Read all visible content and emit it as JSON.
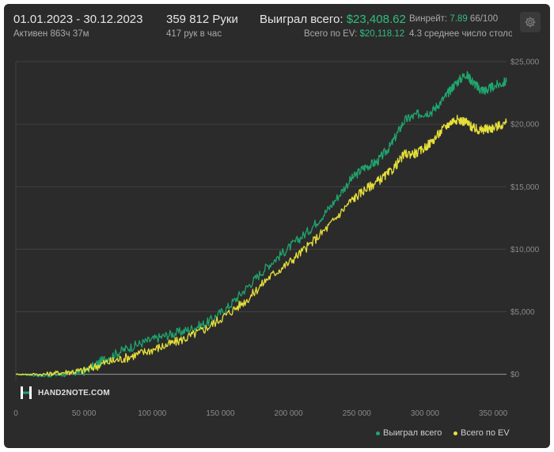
{
  "header": {
    "date_range": "01.01.2023 - 30.12.2023",
    "active_time": "Активен 863ч 37м",
    "hands": "359 812 Руки",
    "hands_per_hour": "417 рук в час",
    "won_label": "Выиграл всего:",
    "won_value": "$23,408.62",
    "ev_label": "Всего по EV:",
    "ev_value": "$20,118.12",
    "winrate_label": "Винрейт:",
    "winrate_value": "7.89",
    "winrate_extra": "66/100",
    "avg_tables": "4.3 среднее число столо"
  },
  "logo": {
    "text": "HAND2NOTE.COM"
  },
  "legend": [
    {
      "label": "Выиграл всего",
      "color": "#1fa56e"
    },
    {
      "label": "Всего по EV",
      "color": "#e6e03a"
    }
  ],
  "icons": {
    "settings": "gear-icon"
  },
  "colors": {
    "panel_bg": "#2b2b2b",
    "grid": "#414141",
    "accent_green": "#2fbf7f",
    "ev_yellow": "#e6e03a"
  },
  "chart_data": {
    "type": "line",
    "x_ticks": [
      "0",
      "50 000",
      "100 000",
      "150 000",
      "200 000",
      "250 000",
      "300 000",
      "350 000"
    ],
    "x_tick_values": [
      0,
      50000,
      100000,
      150000,
      200000,
      250000,
      300000,
      350000
    ],
    "y_ticks": [
      "$0",
      "$5,000",
      "$10,000",
      "$15,000",
      "$20,000",
      "$25,000"
    ],
    "y_tick_values": [
      0,
      5000,
      10000,
      15000,
      20000,
      25000
    ],
    "xlim": [
      0,
      359812
    ],
    "ylim": [
      -400,
      25000
    ],
    "grid": "horizontal",
    "legend_position": "bottom-right",
    "series": [
      {
        "name": "Выиграл всего",
        "color": "#1fa56e",
        "x": [
          0,
          20000,
          35000,
          50000,
          65000,
          80000,
          95000,
          110000,
          125000,
          140000,
          155000,
          170000,
          185000,
          200000,
          215000,
          230000,
          245000,
          255000,
          265000,
          275000,
          285000,
          295000,
          305000,
          315000,
          322000,
          330000,
          335000,
          340000,
          345000,
          350000,
          359812
        ],
        "y": [
          0,
          -100,
          0,
          200,
          1200,
          2000,
          2600,
          3100,
          3500,
          4100,
          5300,
          7000,
          8700,
          10100,
          11500,
          13300,
          15500,
          16500,
          17000,
          18300,
          20300,
          20800,
          21000,
          22200,
          23200,
          24000,
          23400,
          22800,
          22700,
          23000,
          23400
        ]
      },
      {
        "name": "Всего по EV",
        "color": "#e6e03a",
        "x": [
          0,
          20000,
          35000,
          50000,
          65000,
          80000,
          95000,
          110000,
          125000,
          140000,
          155000,
          170000,
          185000,
          200000,
          215000,
          230000,
          245000,
          255000,
          265000,
          275000,
          285000,
          295000,
          305000,
          315000,
          322000,
          330000,
          335000,
          340000,
          345000,
          350000,
          359812
        ],
        "y": [
          0,
          0,
          150,
          300,
          900,
          1300,
          1800,
          2300,
          2900,
          3700,
          4800,
          6000,
          7700,
          8900,
          10300,
          11900,
          13800,
          14700,
          15400,
          16200,
          17600,
          17700,
          18600,
          19800,
          20400,
          20200,
          19700,
          19500,
          19600,
          19700,
          20100
        ]
      }
    ]
  }
}
